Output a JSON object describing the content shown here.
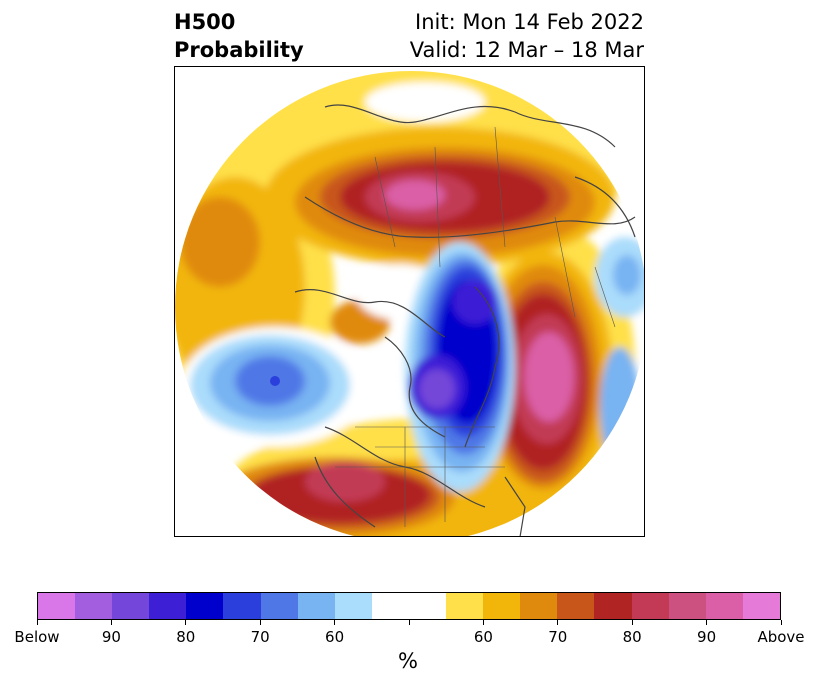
{
  "header": {
    "title_line1": "H500",
    "title_line2": "Probability",
    "init": "Init: Mon 14 Feb 2022",
    "valid": "Valid: 12 Mar – 18 Mar"
  },
  "colorbar": {
    "colors": [
      "#d977e8",
      "#a35ee0",
      "#7446d9",
      "#3d1fd6",
      "#0000cc",
      "#2a3fdb",
      "#4f78e6",
      "#78b3f2",
      "#aadcfb",
      "#ffffff",
      "#ffffff",
      "#ffe04a",
      "#f2b50a",
      "#e08a0d",
      "#c8561a",
      "#b02424",
      "#c23a55",
      "#cc5080",
      "#da5fa6",
      "#e57ad8"
    ],
    "ticks": [
      "Below",
      "90",
      "80",
      "70",
      "60",
      "60",
      "70",
      "80",
      "90",
      "Above"
    ],
    "unit": "%"
  }
}
